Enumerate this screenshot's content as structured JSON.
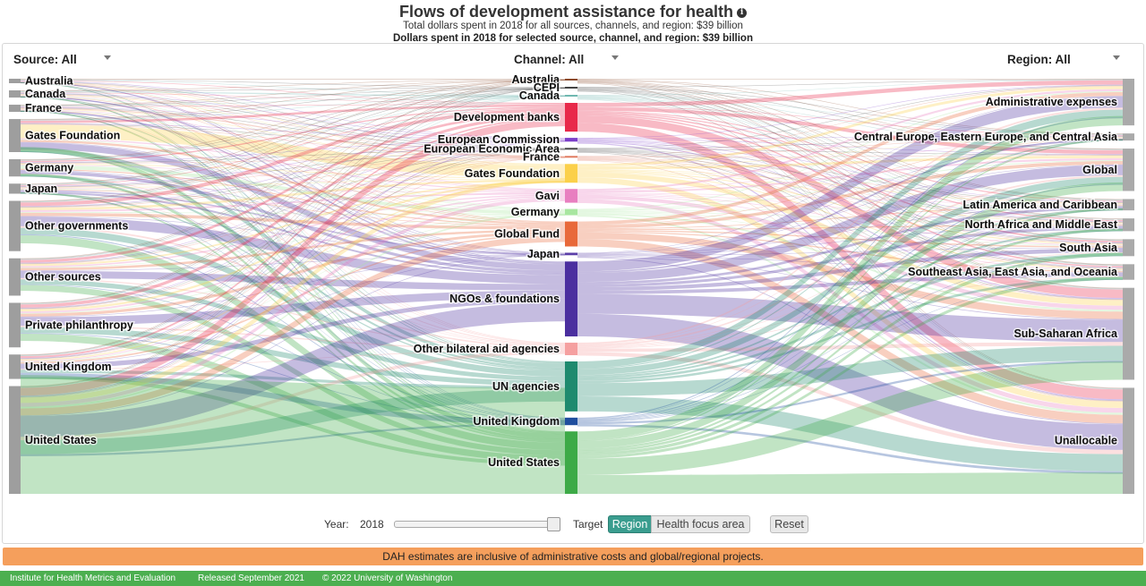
{
  "header": {
    "title": "Flows of development assistance for health",
    "info_icon": "info-icon",
    "subtitle": "Total dollars spent in 2018 for all sources, channels, and region: $39 billion",
    "selected_line": "Dollars spent in 2018 for selected source, channel, and region: $39 billion"
  },
  "filters": {
    "source": "Source: All",
    "channel": "Channel: All",
    "region": "Region: All"
  },
  "chart_data": {
    "type": "sankey",
    "title": "Flows of development assistance for health",
    "units": "billion USD (2018)",
    "total": 39,
    "sources": [
      {
        "name": "Australia",
        "value": 0.25,
        "color": "#9e9e9e"
      },
      {
        "name": "Canada",
        "value": 0.5,
        "color": "#9e9e9e"
      },
      {
        "name": "France",
        "value": 0.5,
        "color": "#9e9e9e"
      },
      {
        "name": "Gates Foundation",
        "value": 2.3,
        "color": "#9e9e9e"
      },
      {
        "name": "Germany",
        "value": 1.2,
        "color": "#9e9e9e"
      },
      {
        "name": "Japan",
        "value": 0.7,
        "color": "#9e9e9e"
      },
      {
        "name": "Other governments",
        "value": 3.5,
        "color": "#9e9e9e"
      },
      {
        "name": "Other sources",
        "value": 2.6,
        "color": "#9e9e9e"
      },
      {
        "name": "Private philanthropy",
        "value": 3.1,
        "color": "#9e9e9e"
      },
      {
        "name": "United Kingdom",
        "value": 1.7,
        "color": "#9e9e9e"
      },
      {
        "name": "United States",
        "value": 7.5,
        "color": "#9e9e9e"
      }
    ],
    "channels": [
      {
        "name": "Australia",
        "value": 0.1,
        "color": "#8d4a2b"
      },
      {
        "name": "CEPI",
        "value": 0.08,
        "color": "#444444"
      },
      {
        "name": "Canada",
        "value": 0.1,
        "color": "#6fb8b0"
      },
      {
        "name": "Development banks",
        "value": 2.3,
        "color": "#e8294a"
      },
      {
        "name": "European Commission",
        "value": 0.3,
        "color": "#7b3fc9"
      },
      {
        "name": "European Economic Area",
        "value": 0.05,
        "color": "#444444"
      },
      {
        "name": "France",
        "value": 0.1,
        "color": "#e07a5f"
      },
      {
        "name": "Gates Foundation",
        "value": 1.5,
        "color": "#fbd04a"
      },
      {
        "name": "Gavi",
        "value": 1.1,
        "color": "#e87fc0"
      },
      {
        "name": "Germany",
        "value": 0.5,
        "color": "#a8e6a0"
      },
      {
        "name": "Global Fund",
        "value": 2.0,
        "color": "#e8693a"
      },
      {
        "name": "Japan",
        "value": 0.2,
        "color": "#5b3ea8"
      },
      {
        "name": "NGOs & foundations",
        "value": 6.0,
        "color": "#4b2f9f"
      },
      {
        "name": "Other bilateral aid agencies",
        "value": 1.0,
        "color": "#f5a0a0"
      },
      {
        "name": "UN agencies",
        "value": 4.0,
        "color": "#1e8a6e"
      },
      {
        "name": "United Kingdom",
        "value": 0.6,
        "color": "#1f4e9e"
      },
      {
        "name": "United States",
        "value": 5.0,
        "color": "#3daa47"
      }
    ],
    "regions": [
      {
        "name": "Administrative expenses",
        "value": 3.3,
        "color": "#aaaaaa"
      },
      {
        "name": "Central Europe, Eastern Europe, and Central Asia",
        "value": 0.5,
        "color": "#aaaaaa"
      },
      {
        "name": "Global",
        "value": 3.0,
        "color": "#aaaaaa"
      },
      {
        "name": "Latin America and Caribbean",
        "value": 0.8,
        "color": "#aaaaaa"
      },
      {
        "name": "North Africa and Middle East",
        "value": 0.9,
        "color": "#aaaaaa"
      },
      {
        "name": "South Asia",
        "value": 1.2,
        "color": "#aaaaaa"
      },
      {
        "name": "Southeast Asia, East Asia, and Oceania",
        "value": 1.1,
        "color": "#aaaaaa"
      },
      {
        "name": "Sub-Saharan Africa",
        "value": 6.5,
        "color": "#aaaaaa"
      },
      {
        "name": "Unallocable",
        "value": 7.5,
        "color": "#aaaaaa"
      }
    ]
  },
  "controls": {
    "year_label": "Year:",
    "year_value": "2018",
    "year_fraction": 1.0,
    "target_label": "Target",
    "region_button": "Region",
    "focus_button": "Health focus area",
    "reset_button": "Reset",
    "active_color": "#3a9d8f"
  },
  "notice": "DAH estimates are inclusive of administrative costs and global/regional projects.",
  "footer": {
    "org": "Institute for Health Metrics and Evaluation",
    "released": "Released September 2021",
    "copyright": "© 2022 University of Washington"
  }
}
